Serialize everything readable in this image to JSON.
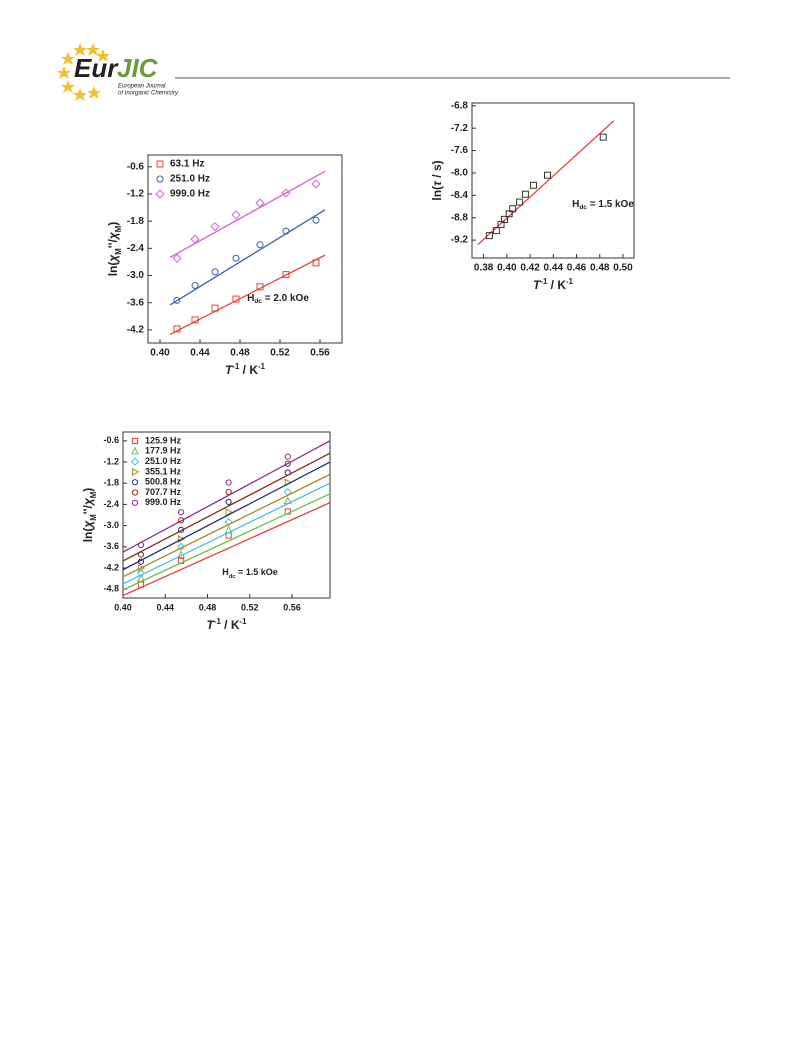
{
  "header": {
    "logo_part1": "Eur",
    "logo_part2": "JIC",
    "journal_line1": "European Journal",
    "journal_line2": "of Inorganic Chemistry"
  },
  "chart_data": [
    {
      "type": "scatter",
      "x_label": [
        {
          "text": "T",
          "style": "italic"
        },
        {
          "text": "-1",
          "style": "sup"
        },
        {
          "text": " / K",
          "style": "normal"
        },
        {
          "text": "-1",
          "style": "sup"
        }
      ],
      "y_label": [
        {
          "text": "ln(",
          "style": "normal"
        },
        {
          "text": "χ",
          "style": "italic"
        },
        {
          "text": "M",
          "style": "sub"
        },
        {
          "text": "''/",
          "style": "normal"
        },
        {
          "text": "χ",
          "style": "italic"
        },
        {
          "text": "M",
          "style": "sub"
        },
        {
          "text": ")",
          "style": "normal"
        }
      ],
      "annotation": [
        {
          "text": "H",
          "style": "normal"
        },
        {
          "text": "dc",
          "style": "sub"
        },
        {
          "text": " = 2.0 kOe",
          "style": "normal"
        }
      ],
      "xlim": [
        0.388,
        0.582
      ],
      "ylim": [
        -4.49,
        -0.34
      ],
      "xticks": [
        {
          "value": 0.4,
          "label": "0.40"
        },
        0.44,
        0.48,
        0.52,
        0.56
      ],
      "yticks": [
        -0.6,
        -1.2,
        -1.8,
        -2.4,
        {
          "value": -3.0,
          "label": "-3.0"
        },
        -3.6,
        -4.2
      ],
      "legend": "upper left",
      "series": [
        {
          "name": "63.1 Hz",
          "color": "#e8413a",
          "marker": "square",
          "x": [
            0.417,
            0.435,
            0.455,
            0.476,
            0.5,
            0.526,
            0.556
          ],
          "values": [
            -4.18,
            -3.98,
            -3.72,
            -3.52,
            -3.25,
            -2.98,
            -2.72
          ],
          "fit_x": [
            0.41,
            0.565
          ],
          "fit_values": [
            -4.3,
            -2.55
          ]
        },
        {
          "name": "251.0 Hz",
          "color": "#3a5fb0",
          "marker": "circle",
          "x": [
            0.417,
            0.435,
            0.455,
            0.476,
            0.5,
            0.526,
            0.556
          ],
          "values": [
            -3.55,
            -3.22,
            -2.92,
            -2.62,
            -2.32,
            -2.02,
            -1.78
          ],
          "fit_x": [
            0.41,
            0.565
          ],
          "fit_values": [
            -3.65,
            -1.55
          ]
        },
        {
          "name": "999.0 Hz",
          "color": "#d65fd3",
          "marker": "diamond",
          "x": [
            0.417,
            0.435,
            0.455,
            0.476,
            0.5,
            0.526,
            0.556
          ],
          "values": [
            -2.62,
            -2.2,
            -1.92,
            -1.66,
            -1.4,
            -1.18,
            -0.98
          ],
          "fit_x": [
            0.41,
            0.565
          ],
          "fit_values": [
            -2.6,
            -0.7
          ]
        }
      ]
    },
    {
      "type": "scatter",
      "x_label": [
        {
          "text": "T",
          "style": "italic"
        },
        {
          "text": "-1",
          "style": "sup"
        },
        {
          "text": " / K",
          "style": "normal"
        },
        {
          "text": "-1",
          "style": "sup"
        }
      ],
      "y_label": [
        {
          "text": "ln(",
          "style": "normal"
        },
        {
          "text": "τ",
          "style": "italic"
        },
        {
          "text": " / s)",
          "style": "normal"
        }
      ],
      "annotation": [
        {
          "text": "H",
          "style": "normal"
        },
        {
          "text": "dc",
          "style": "sub"
        },
        {
          "text": " = 1.5 kOe",
          "style": "normal"
        }
      ],
      "xlim": [
        0.37,
        0.5095
      ],
      "ylim": [
        -9.52,
        -6.75
      ],
      "xticks": [
        0.38,
        {
          "value": 0.4,
          "label": "0.40"
        },
        0.42,
        0.44,
        0.46,
        0.48,
        {
          "value": 0.5,
          "label": "0.50"
        }
      ],
      "yticks": [
        -6.8,
        -7.2,
        -7.6,
        {
          "value": -8.0,
          "label": "-8.0"
        },
        -8.4,
        -8.8,
        -9.2
      ],
      "series": [
        {
          "color": "#333333",
          "fit_color": "#e8413a",
          "marker": "square",
          "x": [
            0.385,
            0.391,
            0.395,
            0.398,
            0.402,
            0.405,
            0.411,
            0.416,
            0.423,
            0.435,
            0.483
          ],
          "values": [
            -9.12,
            -9.03,
            -8.92,
            -8.83,
            -8.73,
            -8.64,
            -8.52,
            -8.38,
            -8.22,
            -8.04,
            -7.36
          ],
          "fit_x": [
            0.375,
            0.492
          ],
          "fit_values": [
            -9.28,
            -7.07
          ]
        }
      ]
    },
    {
      "type": "scatter",
      "x_label": [
        {
          "text": "T",
          "style": "italic"
        },
        {
          "text": "-1",
          "style": "sup"
        },
        {
          "text": " / K",
          "style": "normal"
        },
        {
          "text": "-1",
          "style": "sup"
        }
      ],
      "y_label": [
        {
          "text": "ln(",
          "style": "normal"
        },
        {
          "text": "χ",
          "style": "italic"
        },
        {
          "text": "M",
          "style": "sub"
        },
        {
          "text": "''/",
          "style": "normal"
        },
        {
          "text": "χ",
          "style": "italic"
        },
        {
          "text": "M",
          "style": "sub"
        },
        {
          "text": ")",
          "style": "normal"
        }
      ],
      "annotation": [
        {
          "text": "H",
          "style": "normal"
        },
        {
          "text": "dc",
          "style": "sub"
        },
        {
          "text": " = 1.5 kOe",
          "style": "normal"
        }
      ],
      "xlim": [
        0.4,
        0.596
      ],
      "ylim": [
        -5.05,
        -0.35
      ],
      "xticks": [
        {
          "value": 0.4,
          "label": "0.40"
        },
        0.44,
        0.48,
        0.52,
        0.56
      ],
      "yticks": [
        -0.6,
        -1.2,
        -1.8,
        -2.4,
        {
          "value": -3.0,
          "label": "-3.0"
        },
        -3.6,
        -4.2,
        -4.8
      ],
      "legend": "upper left",
      "series": [
        {
          "name": "125.9 Hz",
          "color": "#e8413a",
          "marker": "square",
          "x": [
            0.417,
            0.455,
            0.5,
            0.556
          ],
          "values": [
            -4.67,
            -4.0,
            -3.28,
            -2.6
          ],
          "fit_x": [
            0.4,
            0.596
          ],
          "fit_values": [
            -4.98,
            -2.35
          ]
        },
        {
          "name": "177.9 Hz",
          "color": "#6ac04a",
          "marker": "triangle-up",
          "x": [
            0.417,
            0.455,
            0.5,
            0.556
          ],
          "values": [
            -4.5,
            -3.83,
            -3.13,
            -2.3
          ],
          "fit_x": [
            0.4,
            0.596
          ],
          "fit_values": [
            -4.82,
            -2.1
          ]
        },
        {
          "name": "251.0 Hz",
          "color": "#42c0e6",
          "marker": "diamond",
          "x": [
            0.417,
            0.455,
            0.5,
            0.556
          ],
          "values": [
            -4.35,
            -3.6,
            -2.9,
            -2.05
          ],
          "fit_x": [
            0.4,
            0.596
          ],
          "fit_values": [
            -4.65,
            -1.8
          ]
        },
        {
          "name": "355.1 Hz",
          "color": "#a28a2a",
          "marker": "triangle-right",
          "x": [
            0.417,
            0.455,
            0.5,
            0.556
          ],
          "values": [
            -4.2,
            -3.38,
            -2.62,
            -1.78
          ],
          "fit_x": [
            0.4,
            0.596
          ],
          "fit_values": [
            -4.45,
            -1.55
          ]
        },
        {
          "name": "500.8 Hz",
          "color": "#1e2f7a",
          "marker": "circle",
          "x": [
            0.417,
            0.455,
            0.5,
            0.556
          ],
          "values": [
            -4.02,
            -3.12,
            -2.33,
            -1.5
          ],
          "fit_x": [
            0.4,
            0.596
          ],
          "fit_values": [
            -4.25,
            -1.2
          ]
        },
        {
          "name": "707.7 Hz",
          "color": "#8b2a1a",
          "marker": "circle",
          "x": [
            0.417,
            0.455,
            0.5,
            0.556
          ],
          "values": [
            -3.82,
            -2.85,
            -2.05,
            -1.25
          ],
          "fit_x": [
            0.4,
            0.596
          ],
          "fit_values": [
            -4.0,
            -0.95
          ]
        },
        {
          "name": "999.0 Hz",
          "color": "#8a2a8a",
          "marker": "circle",
          "x": [
            0.417,
            0.455,
            0.5,
            0.556
          ],
          "values": [
            -3.55,
            -2.62,
            -1.78,
            -1.05
          ],
          "fit_x": [
            0.4,
            0.596
          ],
          "fit_values": [
            -3.75,
            -0.6
          ]
        }
      ]
    }
  ]
}
